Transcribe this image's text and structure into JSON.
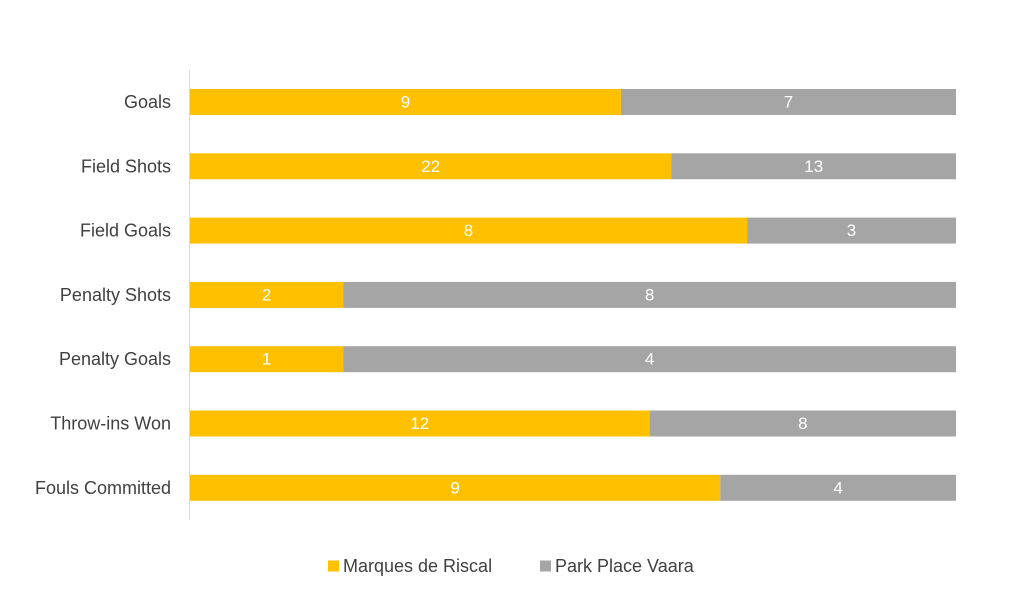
{
  "chart_data": {
    "type": "bar",
    "orientation": "horizontal",
    "stacked": "percent",
    "categories": [
      "Goals",
      "Field Shots",
      "Field Goals",
      "Penalty Shots",
      "Penalty Goals",
      "Throw-ins Won",
      "Fouls Committed"
    ],
    "series": [
      {
        "name": "Marques de Riscal",
        "color": "#ffc000",
        "values": [
          9,
          22,
          8,
          2,
          1,
          12,
          9
        ]
      },
      {
        "name": "Park Place Vaara",
        "color": "#a5a5a5",
        "values": [
          7,
          13,
          3,
          8,
          4,
          8,
          4
        ]
      }
    ],
    "title": "",
    "xlabel": "",
    "ylabel": "",
    "grid": false,
    "legend": "bottom",
    "data_labels": true
  }
}
